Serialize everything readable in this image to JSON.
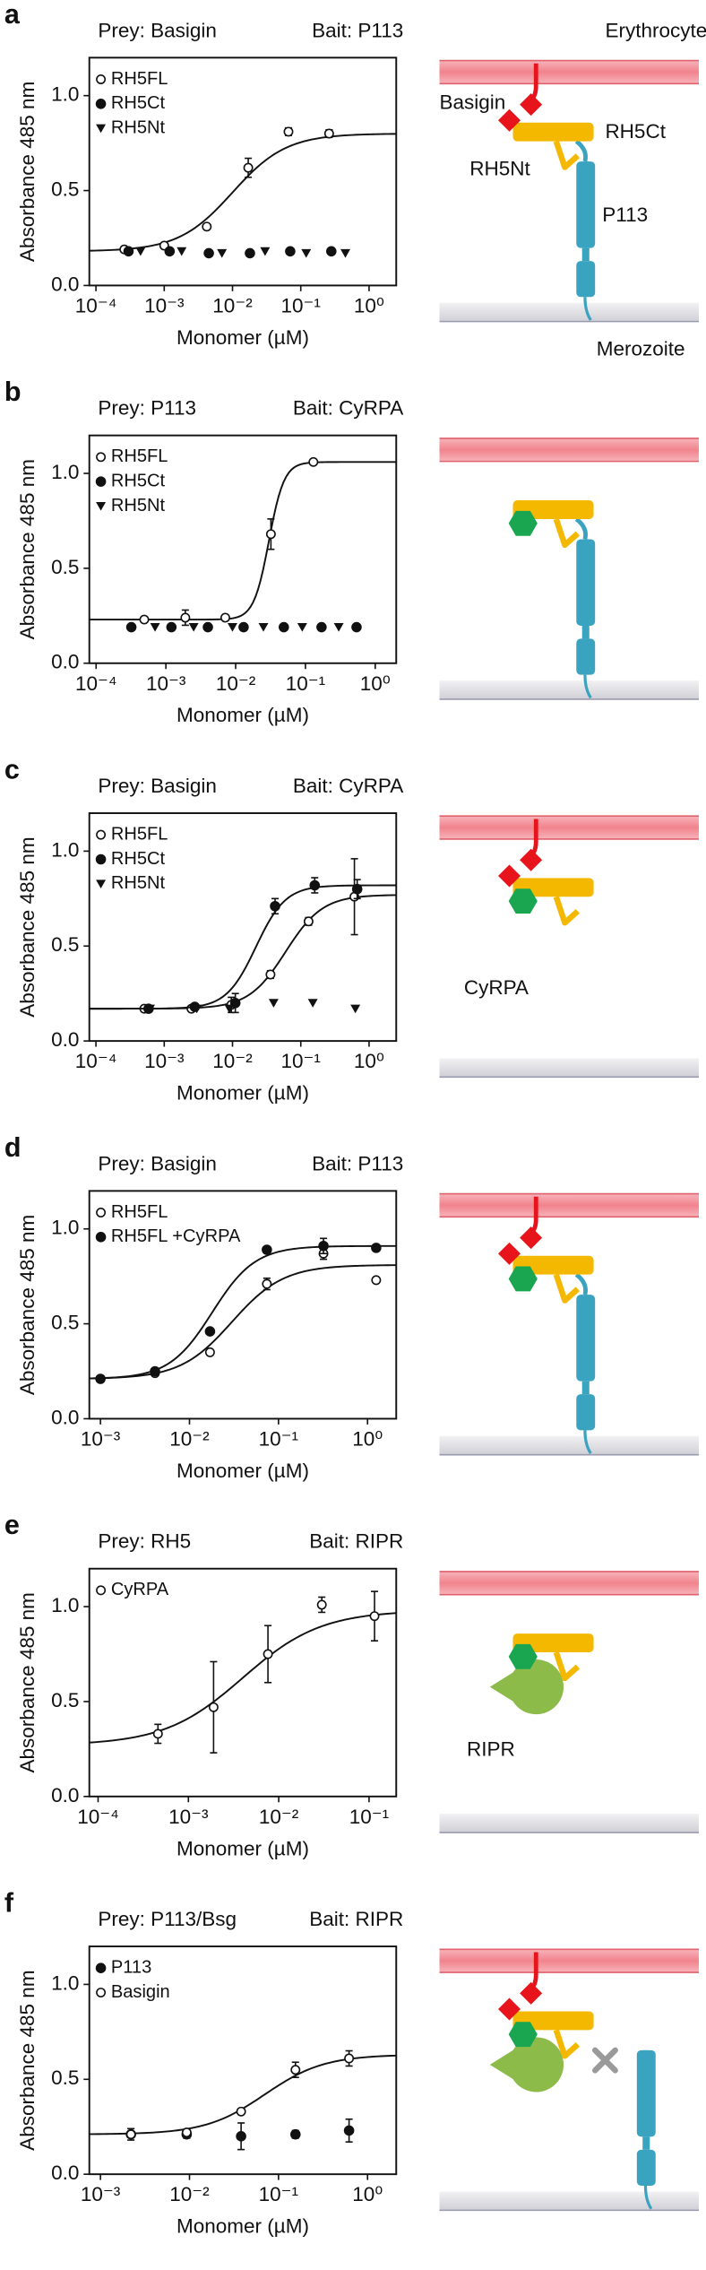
{
  "chart_data": [
    {
      "type": "scatter",
      "panel": "a",
      "prey": "Prey: Basigin",
      "bait": "Bait: P113",
      "xlabel": "Monomer (µM)",
      "ylabel": "Absorbance 485 nm",
      "xscale": "log",
      "xlim": [
        8e-05,
        2.5
      ],
      "ylim": [
        0,
        1.2
      ],
      "xticks": [
        {
          "value": 0.0001,
          "label": "10⁻⁴"
        },
        {
          "value": 0.001,
          "label": "10⁻³"
        },
        {
          "value": 0.01,
          "label": "10⁻²"
        },
        {
          "value": 0.1,
          "label": "10⁻¹"
        },
        {
          "value": 1,
          "label": "10⁰"
        }
      ],
      "yticks": [
        {
          "value": 0,
          "label": "0.0"
        },
        0.5,
        {
          "value": 1,
          "label": "1.0"
        }
      ],
      "series": [
        {
          "name": "RH5FL",
          "marker": "open-circle",
          "color": "#111111",
          "x": [
            0.00026,
            0.001,
            0.0042,
            0.017,
            0.066,
            0.26
          ],
          "values": [
            0.19,
            0.21,
            0.31,
            0.62,
            0.81,
            0.8
          ],
          "errors": [
            0.01,
            0.01,
            0.01,
            0.05,
            0.02,
            0.02
          ],
          "fit": {
            "bottom": 0.18,
            "top": 0.8,
            "ec50": 0.01,
            "hill": 1.1
          }
        },
        {
          "name": "RH5Ct",
          "marker": "filled-circle",
          "color": "#111111",
          "x": [
            0.0003,
            0.0012,
            0.0045,
            0.018,
            0.07,
            0.28
          ],
          "values": [
            0.18,
            0.18,
            0.17,
            0.17,
            0.18,
            0.18
          ]
        },
        {
          "name": "RH5Nt",
          "marker": "triangle-down",
          "color": "#111111",
          "x": [
            0.00045,
            0.0018,
            0.007,
            0.03,
            0.12,
            0.45
          ],
          "values": [
            0.18,
            0.18,
            0.17,
            0.18,
            0.17,
            0.17
          ]
        }
      ]
    },
    {
      "type": "scatter",
      "panel": "b",
      "prey": "Prey: P113",
      "bait": "Bait: CyRPA",
      "xlabel": "Monomer (µM)",
      "ylabel": "Absorbance 485 nm",
      "xscale": "log",
      "xlim": [
        8e-05,
        2
      ],
      "ylim": [
        0,
        1.2
      ],
      "xticks": [
        {
          "value": 0.0001,
          "label": "10⁻⁴"
        },
        {
          "value": 0.001,
          "label": "10⁻³"
        },
        {
          "value": 0.01,
          "label": "10⁻²"
        },
        {
          "value": 0.1,
          "label": "10⁻¹"
        },
        {
          "value": 1,
          "label": "10⁰"
        }
      ],
      "yticks": [
        {
          "value": 0,
          "label": "0.0"
        },
        0.5,
        {
          "value": 1,
          "label": "1.0"
        }
      ],
      "series": [
        {
          "name": "RH5FL",
          "marker": "open-circle",
          "color": "#111111",
          "x": [
            0.00049,
            0.0019,
            0.0071,
            0.032,
            0.13
          ],
          "values": [
            0.23,
            0.24,
            0.24,
            0.68,
            1.06
          ],
          "errors": [
            0.01,
            0.04,
            0.01,
            0.08,
            0.01
          ],
          "fit": {
            "bottom": 0.23,
            "top": 1.06,
            "ec50": 0.03,
            "hill": 4
          }
        },
        {
          "name": "RH5Ct",
          "marker": "filled-circle",
          "color": "#111111",
          "x": [
            0.00032,
            0.0012,
            0.004,
            0.013,
            0.049,
            0.17,
            0.54
          ],
          "values": [
            0.19,
            0.19,
            0.19,
            0.19,
            0.19,
            0.19,
            0.19
          ]
        },
        {
          "name": "RH5Nt",
          "marker": "triangle-down",
          "color": "#111111",
          "x": [
            0.0007,
            0.0025,
            0.009,
            0.025,
            0.09,
            0.3
          ],
          "values": [
            0.19,
            0.19,
            0.19,
            0.19,
            0.19,
            0.19
          ]
        }
      ]
    },
    {
      "type": "scatter",
      "panel": "c",
      "prey": "Prey: Basigin",
      "bait": "Bait: CyRPA",
      "xlabel": "Monomer (µM)",
      "ylabel": "Absorbance 485 nm",
      "xscale": "log",
      "xlim": [
        8e-05,
        2.5
      ],
      "ylim": [
        0,
        1.2
      ],
      "xticks": [
        {
          "value": 0.0001,
          "label": "10⁻⁴"
        },
        {
          "value": 0.001,
          "label": "10⁻³"
        },
        {
          "value": 0.01,
          "label": "10⁻²"
        },
        {
          "value": 0.1,
          "label": "10⁻¹"
        },
        {
          "value": 1,
          "label": "10⁰"
        }
      ],
      "yticks": [
        {
          "value": 0,
          "label": "0.0"
        },
        0.5,
        {
          "value": 1,
          "label": "1.0"
        }
      ],
      "series": [
        {
          "name": "RH5FL",
          "marker": "open-circle",
          "color": "#111111",
          "x": [
            0.00051,
            0.0025,
            0.0096,
            0.036,
            0.13,
            0.61
          ],
          "values": [
            0.17,
            0.17,
            0.19,
            0.35,
            0.63,
            0.76
          ],
          "errors": [
            0.01,
            0.01,
            0.04,
            0.02,
            0.02,
            0.2
          ],
          "fit": {
            "bottom": 0.17,
            "top": 0.77,
            "ec50": 0.06,
            "hill": 1.6
          }
        },
        {
          "name": "RH5Ct",
          "marker": "filled-circle",
          "color": "#111111",
          "x": [
            0.00059,
            0.0028,
            0.011,
            0.042,
            0.16,
            0.67
          ],
          "values": [
            0.17,
            0.18,
            0.2,
            0.71,
            0.82,
            0.8
          ],
          "errors": [
            0.01,
            0.01,
            0.05,
            0.04,
            0.04,
            0.05
          ],
          "fit": {
            "bottom": 0.17,
            "top": 0.82,
            "ec50": 0.022,
            "hill": 2
          }
        },
        {
          "name": "RH5Nt",
          "marker": "triangle-down",
          "color": "#111111",
          "x": [
            0.00062,
            0.003,
            0.009,
            0.04,
            0.15,
            0.63
          ],
          "values": [
            0.17,
            0.17,
            0.17,
            0.2,
            0.2,
            0.17
          ]
        }
      ]
    },
    {
      "type": "scatter",
      "panel": "d",
      "prey": "Prey: Basigin",
      "bait": "Bait: P113",
      "xlabel": "Monomer (µM)",
      "ylabel": "Absorbance 485 nm",
      "xscale": "log",
      "xlim": [
        0.00075,
        2.1
      ],
      "ylim": [
        0,
        1.2
      ],
      "xticks": [
        {
          "value": 0.001,
          "label": "10⁻³"
        },
        {
          "value": 0.01,
          "label": "10⁻²"
        },
        {
          "value": 0.1,
          "label": "10⁻¹"
        },
        {
          "value": 1,
          "label": "10⁰"
        }
      ],
      "yticks": [
        {
          "value": 0,
          "label": "0.0"
        },
        0.5,
        {
          "value": 1,
          "label": "1.0"
        }
      ],
      "series": [
        {
          "name": "RH5FL",
          "marker": "open-circle",
          "color": "#111111",
          "x": [
            0.001,
            0.0041,
            0.017,
            0.074,
            0.32,
            1.25
          ],
          "values": [
            0.21,
            0.24,
            0.35,
            0.71,
            0.87,
            0.73
          ],
          "errors": [
            0.01,
            0.01,
            0.01,
            0.03,
            0.03,
            0.01
          ],
          "fit": {
            "bottom": 0.21,
            "top": 0.81,
            "ec50": 0.03,
            "hill": 1.5
          }
        },
        {
          "name": "RH5FL +CyRPA",
          "marker": "filled-circle",
          "color": "#111111",
          "x": [
            0.001,
            0.0041,
            0.017,
            0.074,
            0.32,
            1.25
          ],
          "values": [
            0.21,
            0.25,
            0.46,
            0.89,
            0.91,
            0.9
          ],
          "errors": [
            0.01,
            0.01,
            0.01,
            0.01,
            0.04,
            0.01
          ],
          "fit": {
            "bottom": 0.21,
            "top": 0.91,
            "ec50": 0.018,
            "hill": 1.8
          }
        }
      ]
    },
    {
      "type": "scatter",
      "panel": "e",
      "prey": "Prey: RH5",
      "bait": "Bait: RIPR",
      "xlabel": "Monomer (µM)",
      "ylabel": "Absorbance 485 nm",
      "xscale": "log",
      "xlim": [
        8e-05,
        0.2
      ],
      "ylim": [
        0,
        1.2
      ],
      "xticks": [
        {
          "value": 0.0001,
          "label": "10⁻⁴"
        },
        {
          "value": 0.001,
          "label": "10⁻³"
        },
        {
          "value": 0.01,
          "label": "10⁻²"
        },
        {
          "value": 0.1,
          "label": "10⁻¹"
        }
      ],
      "yticks": [
        {
          "value": 0,
          "label": "0.0"
        },
        0.5,
        {
          "value": 1,
          "label": "1.0"
        }
      ],
      "series": [
        {
          "name": "CyRPA",
          "marker": "open-circle",
          "color": "#111111",
          "x": [
            0.00046,
            0.0019,
            0.0076,
            0.03,
            0.115
          ],
          "values": [
            0.33,
            0.47,
            0.75,
            1.01,
            0.95
          ],
          "errors": [
            0.05,
            0.24,
            0.15,
            0.04,
            0.13
          ],
          "fit": {
            "bottom": 0.27,
            "top": 0.98,
            "ec50": 0.004,
            "hill": 1
          }
        }
      ]
    },
    {
      "type": "scatter",
      "panel": "f",
      "prey": "Prey: P113/Bsg",
      "bait": "Bait: RIPR",
      "xlabel": "Monomer (µM)",
      "ylabel": "Absorbance 485 nm",
      "xscale": "log",
      "xlim": [
        0.00075,
        2.1
      ],
      "ylim": [
        0,
        1.2
      ],
      "xticks": [
        {
          "value": 0.001,
          "label": "10⁻³"
        },
        {
          "value": 0.01,
          "label": "10⁻²"
        },
        {
          "value": 0.1,
          "label": "10⁻¹"
        },
        {
          "value": 1,
          "label": "10⁰"
        }
      ],
      "yticks": [
        {
          "value": 0,
          "label": "0.0"
        },
        0.5,
        {
          "value": 1,
          "label": "1.0"
        }
      ],
      "series": [
        {
          "name": "P113",
          "marker": "filled-circle",
          "color": "#111111",
          "x": [
            0.0022,
            0.0093,
            0.038,
            0.155,
            0.62
          ],
          "values": [
            0.21,
            0.21,
            0.2,
            0.21,
            0.23
          ],
          "errors": [
            0.03,
            0.02,
            0.07,
            0.02,
            0.06
          ]
        },
        {
          "name": "Basigin",
          "marker": "open-circle",
          "color": "#111111",
          "x": [
            0.0022,
            0.0093,
            0.038,
            0.155,
            0.62
          ],
          "values": [
            0.21,
            0.22,
            0.33,
            0.55,
            0.61
          ],
          "errors": [
            0.01,
            0.01,
            0.01,
            0.04,
            0.04
          ],
          "fit": {
            "bottom": 0.21,
            "top": 0.63,
            "ec50": 0.07,
            "hill": 1.3
          }
        }
      ]
    }
  ],
  "diagrams": [
    {
      "labels": [
        "Erythrocyte",
        "Basigin",
        "RH5Ct",
        "RH5Nt",
        "P113",
        "Merozoite"
      ]
    },
    {
      "labels": []
    },
    {
      "labels": [
        "CyRPA"
      ]
    },
    {
      "labels": []
    },
    {
      "labels": [
        "RIPR"
      ]
    },
    {
      "labels": []
    }
  ]
}
